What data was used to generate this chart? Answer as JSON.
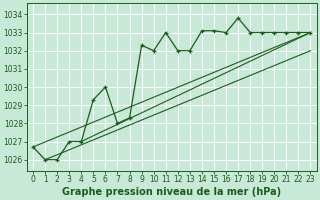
{
  "title": "Graphe pression niveau de la mer (hPa)",
  "bg_color": "#c8e8d8",
  "grid_color": "#aaccbb",
  "line_color": "#1a5e1a",
  "xlim": [
    -0.5,
    23.5
  ],
  "ylim": [
    1025.4,
    1034.6
  ],
  "yticks": [
    1026,
    1027,
    1028,
    1029,
    1030,
    1031,
    1032,
    1033,
    1034
  ],
  "xticks": [
    0,
    1,
    2,
    3,
    4,
    5,
    6,
    7,
    8,
    9,
    10,
    11,
    12,
    13,
    14,
    15,
    16,
    17,
    18,
    19,
    20,
    21,
    22,
    23
  ],
  "main_x": [
    0,
    1,
    2,
    3,
    4,
    5,
    6,
    7,
    8,
    9,
    10,
    11,
    12,
    13,
    14,
    15,
    16,
    17,
    18,
    19,
    20,
    21,
    22,
    23
  ],
  "main_y": [
    1026.7,
    1026.0,
    1026.0,
    1027.0,
    1027.0,
    1029.3,
    1030.0,
    1028.0,
    1028.3,
    1032.3,
    1032.0,
    1033.0,
    1032.0,
    1032.0,
    1033.1,
    1033.1,
    1033.0,
    1033.8,
    1033.0,
    1033.0,
    1033.0,
    1033.0,
    1033.0,
    1033.0
  ],
  "line1_x": [
    1,
    23
  ],
  "line1_y": [
    1026.0,
    1032.0
  ],
  "line2_x": [
    0,
    23
  ],
  "line2_y": [
    1026.7,
    1033.0
  ],
  "line3_x": [
    4,
    23
  ],
  "line3_y": [
    1027.0,
    1033.0
  ],
  "ylabel_fontsize": 5.5,
  "xlabel_fontsize": 7.0,
  "tick_fontsize": 5.5
}
